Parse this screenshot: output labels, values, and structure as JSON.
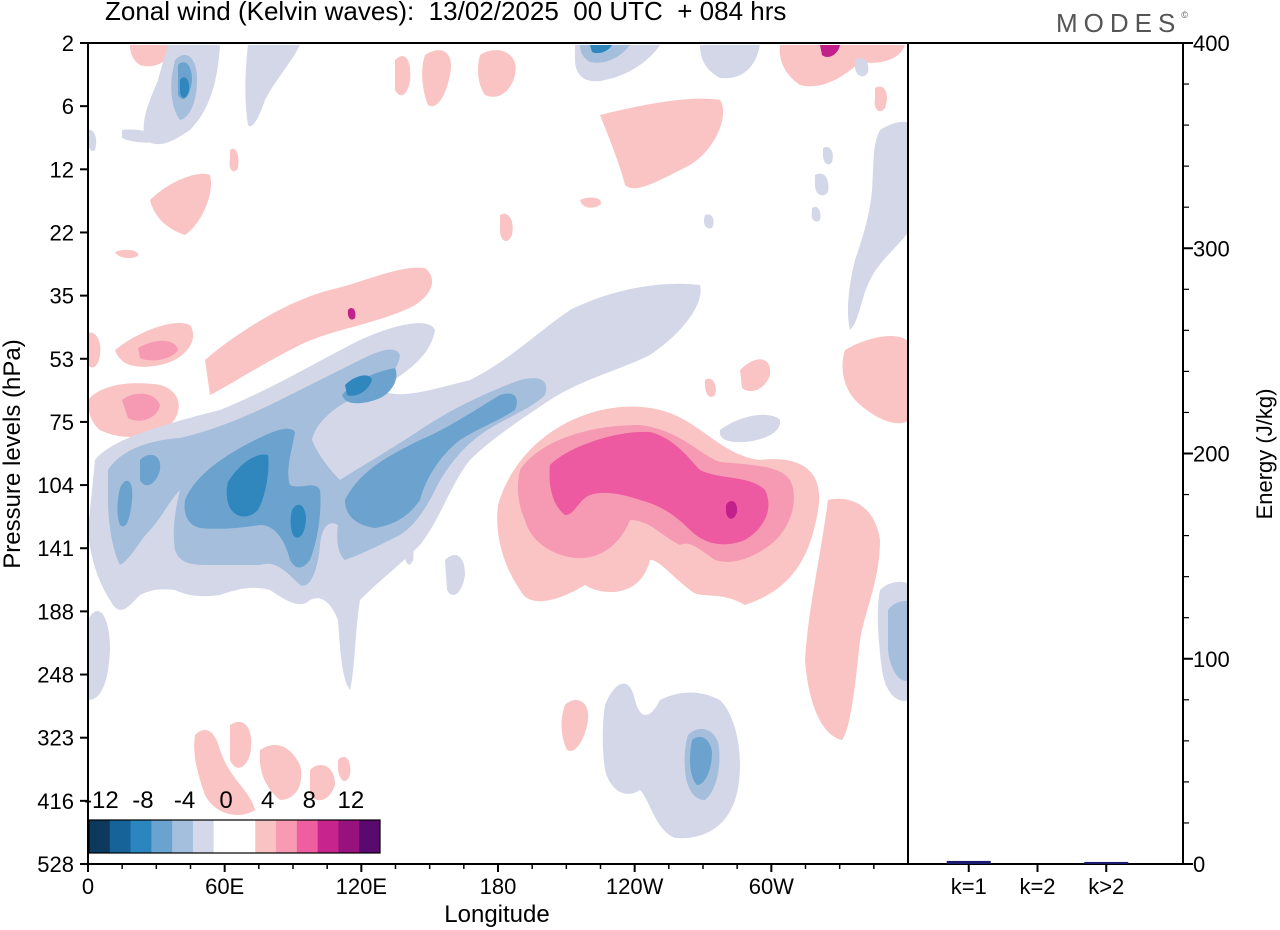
{
  "header": {
    "title": "Zonal wind (Kelvin waves):  13/02/2025  00 UTC  + 084 hrs",
    "brand": "MODES"
  },
  "chart_data": [
    {
      "type": "heatmap",
      "title": "Zonal wind (Kelvin waves):  13/02/2025  00 UTC  + 084 hrs",
      "xlabel": "Longitude",
      "ylabel": "Pressure levels (hPa)",
      "x_ticks": [
        "0",
        "60E",
        "120E",
        "180",
        "120W",
        "60W"
      ],
      "x_tick_longitudes": [
        0,
        60,
        120,
        180,
        240,
        300
      ],
      "xlim": [
        0,
        360
      ],
      "y_ticks": [
        "2",
        "6",
        "12",
        "22",
        "35",
        "53",
        "75",
        "104",
        "141",
        "188",
        "248",
        "323",
        "416",
        "528"
      ],
      "colorbar": {
        "tick_labels": [
          "-12",
          "-8",
          "-4",
          "0",
          "4",
          "8",
          "12"
        ],
        "colors": [
          "#0d3a5c",
          "#156398",
          "#2b86bf",
          "#6aa3cf",
          "#a4bedd",
          "#d5d8e8",
          "#ffffff",
          "#ffffff",
          "#f8c3c2",
          "#f79ab2",
          "#ef5e9f",
          "#c8248e",
          "#98127e",
          "#5a0a6e"
        ]
      },
      "contour_fill": {
        "light_pink": "#f9c4c3",
        "pink": "#f69ab4",
        "magenta": "#ee5aa1",
        "dark_magenta": "#c2208b",
        "lavender": "#d4d7e8",
        "light_blue": "#a5bedc",
        "blue": "#6ba3ce",
        "mid_blue": "#2f87be"
      }
    },
    {
      "type": "bar",
      "categories": [
        "k=1",
        "k=2",
        "k>2"
      ],
      "values": [
        1.5,
        0,
        1
      ],
      "ylabel": "Energy (J/kg)",
      "ylim": [
        0,
        400
      ],
      "y_ticks": [
        "0",
        "100",
        "200",
        "300",
        "400"
      ],
      "bar_colors": [
        "#1a1a6e",
        "#1a1a6e",
        "#1a1a6e"
      ]
    }
  ]
}
